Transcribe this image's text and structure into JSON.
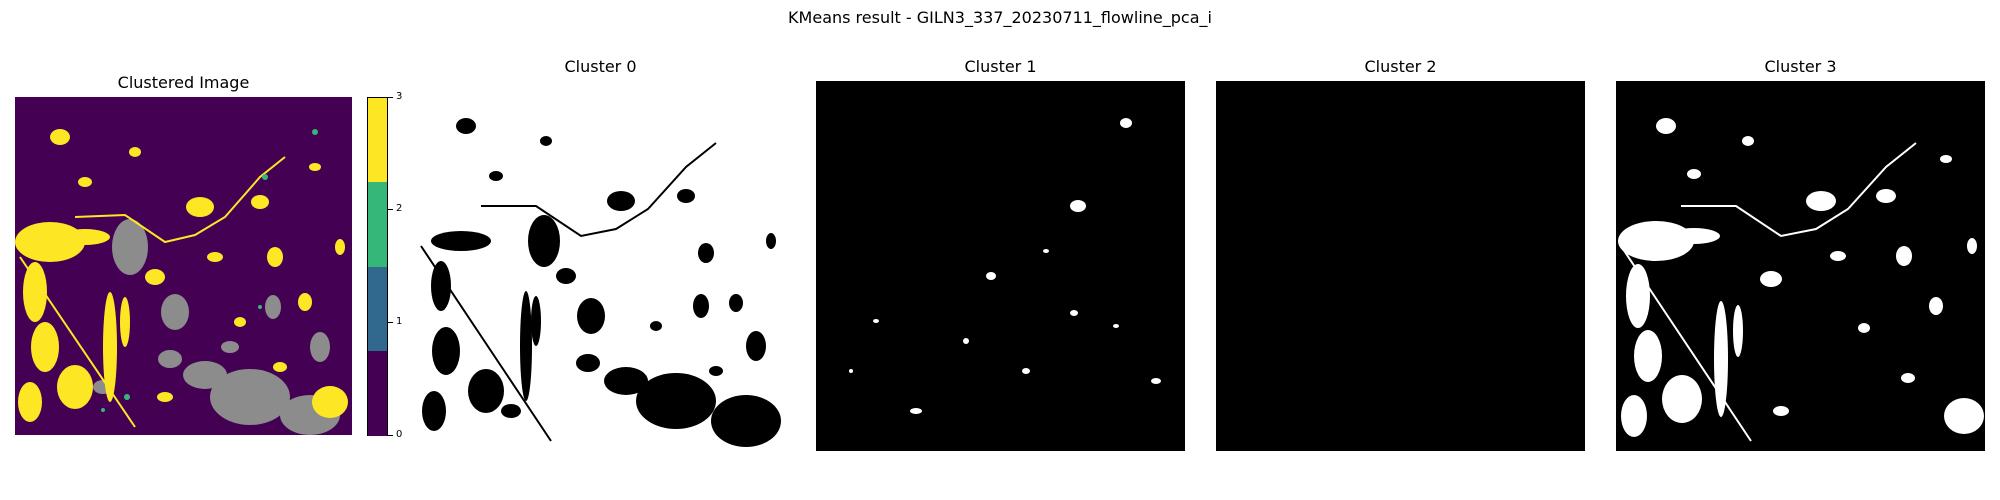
{
  "suptitle": "KMeans result - GILN3_337_20230711_flowline_pca_i",
  "chart_data": [
    {
      "type": "heatmap",
      "title": "Clustered Image",
      "colorbar": {
        "ticks": [
          0,
          1,
          2,
          3
        ],
        "tick_labels": [
          "0",
          "1",
          "2",
          "3"
        ],
        "range": [
          0,
          3
        ],
        "colors": [
          "#440154",
          "#31688e",
          "#35b779",
          "#fde725"
        ]
      },
      "visible_colors": {
        "background": "#440154",
        "cluster_3": "#fde725",
        "cluster_1_visible": "#8c8c8c",
        "cluster_2_spots": "#35b779"
      }
    },
    {
      "type": "heatmap",
      "title": "Cluster 0",
      "foreground": "#ffffff",
      "background": "#000000"
    },
    {
      "type": "heatmap",
      "title": "Cluster 1",
      "foreground": "#ffffff",
      "background": "#000000"
    },
    {
      "type": "heatmap",
      "title": "Cluster 2",
      "foreground": "#ffffff",
      "background": "#000000"
    },
    {
      "type": "heatmap",
      "title": "Cluster 3",
      "foreground": "#ffffff",
      "background": "#000000"
    }
  ]
}
